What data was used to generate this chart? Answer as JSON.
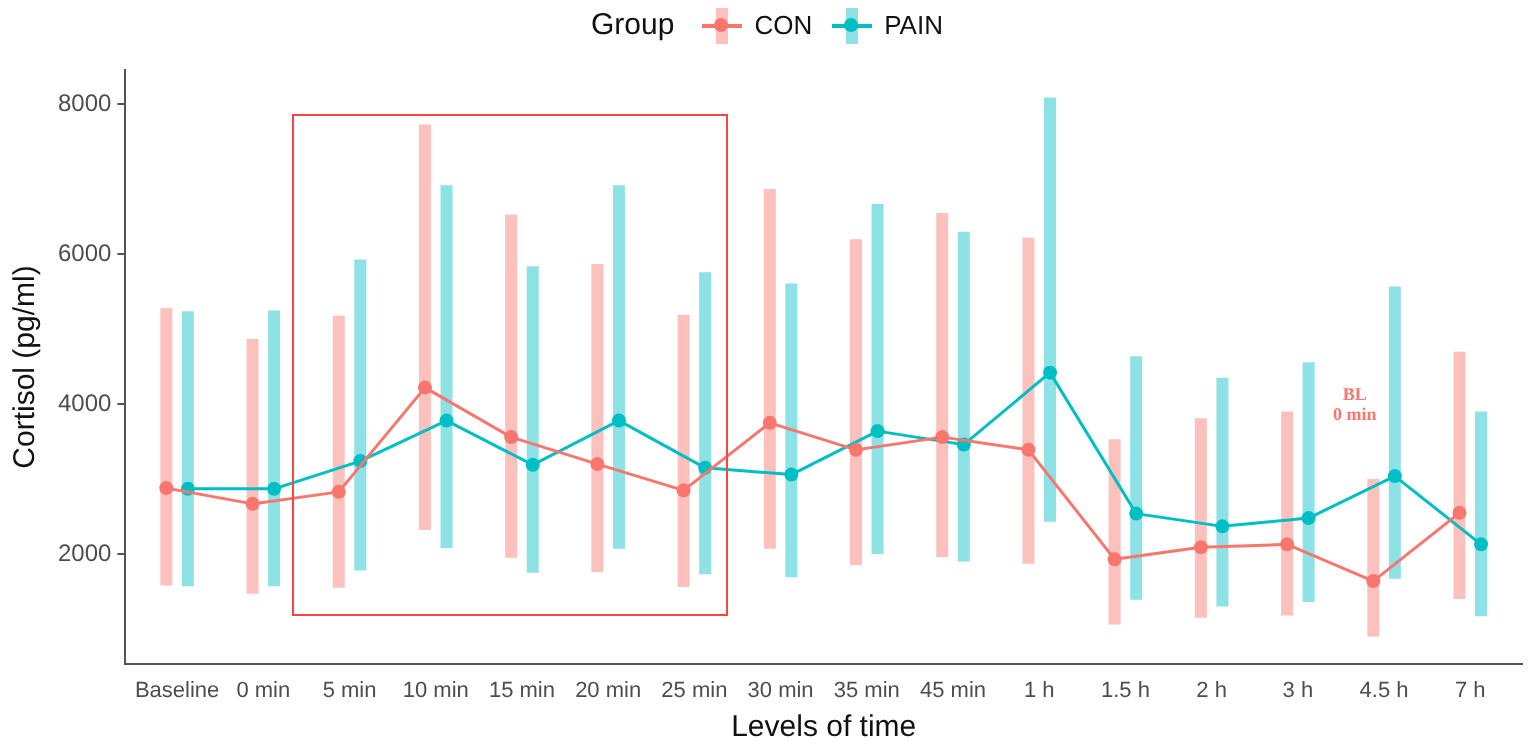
{
  "chart_data": {
    "type": "line",
    "xlabel": "Levels of time",
    "ylabel": "Cortisol (pg/ml)",
    "legend_title": "Group",
    "legend": "top",
    "marker": "circle",
    "grid": false,
    "categories": [
      "Baseline",
      "0 min",
      "5 min",
      "10 min",
      "15 min",
      "20 min",
      "25 min",
      "30 min",
      "35 min",
      "45 min",
      "1 h",
      "1.5 h",
      "2 h",
      "3 h",
      "4.5 h",
      "7 h"
    ],
    "ylim": [
      540,
      8450
    ],
    "yticks": [
      2000,
      4000,
      6000,
      8000
    ],
    "series": [
      {
        "name": "CON",
        "color": "#f8766d",
        "values": [
          2880,
          2670,
          2830,
          4220,
          3560,
          3200,
          2850,
          3750,
          3390,
          3560,
          3390,
          1930,
          2090,
          2130,
          1640,
          2550
        ],
        "errors": [
          [
            1580,
            5280
          ],
          [
            1470,
            4870
          ],
          [
            1550,
            5180
          ],
          [
            2320,
            7730
          ],
          [
            1950,
            6530
          ],
          [
            1760,
            5870
          ],
          [
            1560,
            5190
          ],
          [
            2070,
            6870
          ],
          [
            1850,
            6200
          ],
          [
            1960,
            6550
          ],
          [
            1870,
            6220
          ],
          [
            1060,
            3530
          ],
          [
            1150,
            3810
          ],
          [
            1180,
            3900
          ],
          [
            900,
            3000
          ],
          [
            1400,
            4700
          ]
        ]
      },
      {
        "name": "PAIN",
        "color": "#00bfc4",
        "values": [
          2870,
          2870,
          3240,
          3780,
          3190,
          3780,
          3150,
          3060,
          3640,
          3460,
          4420,
          2540,
          2370,
          2480,
          3040,
          2130
        ],
        "errors": [
          [
            1570,
            5240
          ],
          [
            1570,
            5250
          ],
          [
            1780,
            5930
          ],
          [
            2080,
            6920
          ],
          [
            1750,
            5840
          ],
          [
            2070,
            6920
          ],
          [
            1730,
            5760
          ],
          [
            1690,
            5610
          ],
          [
            2000,
            6670
          ],
          [
            1900,
            6300
          ],
          [
            2430,
            8090
          ],
          [
            1390,
            4640
          ],
          [
            1300,
            4350
          ],
          [
            1360,
            4560
          ],
          [
            1670,
            5570
          ],
          [
            1170,
            3900
          ]
        ]
      }
    ],
    "annotations": [
      "BL 0 min"
    ]
  }
}
